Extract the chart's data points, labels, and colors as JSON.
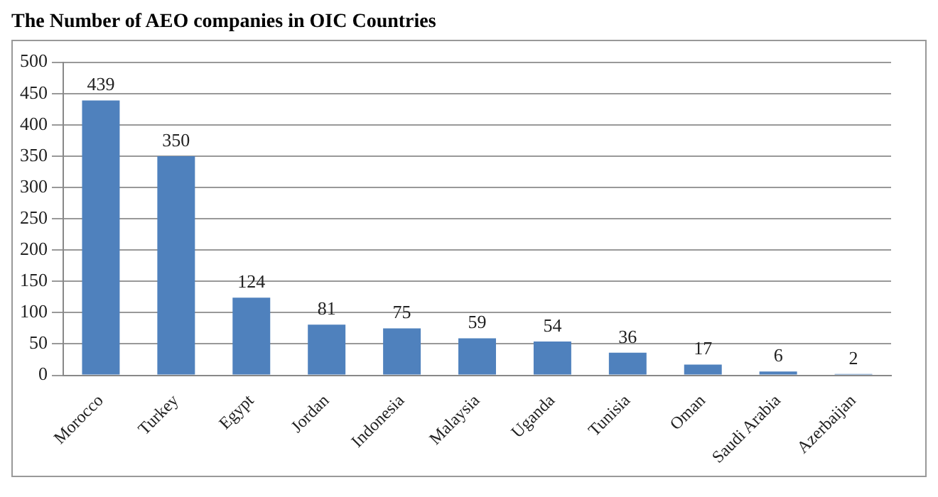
{
  "chart_data": {
    "type": "bar",
    "title": "The Number of AEO companies in OIC Countries",
    "categories": [
      "Morocco",
      "Turkey",
      "Egypt",
      "Jordan",
      "Indonesia",
      "Malaysia",
      "Uganda",
      "Tunisia",
      "Oman",
      "Saudi Arabia",
      "Azerbaijan"
    ],
    "values": [
      439,
      350,
      124,
      81,
      75,
      59,
      54,
      36,
      17,
      6,
      2
    ],
    "color": "#4f81bd",
    "ylim": [
      0,
      500
    ],
    "yticks": [
      0,
      50,
      100,
      150,
      200,
      250,
      300,
      350,
      400,
      450,
      500
    ],
    "grid": "y",
    "data_labels": true,
    "legend": false
  }
}
